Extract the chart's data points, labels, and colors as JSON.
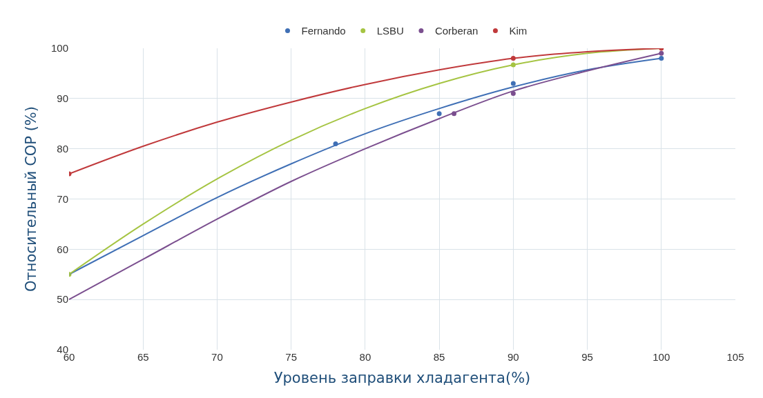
{
  "chart_data": {
    "type": "scatter",
    "xlabel": "Уровень заправки хладагента(%)",
    "ylabel": "Относительный COP (%)",
    "xlim": [
      60,
      105
    ],
    "xticks": [
      60,
      65,
      70,
      75,
      80,
      85,
      90,
      95,
      100,
      105
    ],
    "ylim": [
      40,
      100
    ],
    "yticks": [
      40,
      50,
      60,
      70,
      80,
      90,
      100
    ],
    "grid": true,
    "legend": "top",
    "series": [
      {
        "name": "Fernando",
        "marker": "circle",
        "color": "#3f6fb5",
        "x": [
          78,
          85,
          90,
          100
        ],
        "values": [
          81,
          87,
          93,
          98
        ]
      },
      {
        "name": "LSBU",
        "marker": "circle",
        "color": "#a5c442",
        "x": [
          60,
          90
        ],
        "values": [
          55,
          96.7
        ]
      },
      {
        "name": "Corberan",
        "marker": "circle",
        "color": "#7b4f8f",
        "x": [
          86,
          90,
          100
        ],
        "values": [
          87,
          91,
          99
        ]
      },
      {
        "name": "Kim",
        "marker": "circle",
        "color": "#c0393b",
        "x": [
          60,
          90,
          100
        ],
        "values": [
          75,
          98,
          100
        ]
      },
      {
        "type": "line",
        "color": "#3f6fb5",
        "x": [
          60,
          65,
          70,
          75,
          80,
          85,
          90,
          95,
          100
        ],
        "values": [
          55,
          62.7,
          70.3,
          77,
          83,
          88,
          92.3,
          95.7,
          98
        ]
      },
      {
        "type": "line",
        "color": "#a5c442",
        "x": [
          60,
          65,
          70,
          75,
          80,
          85,
          90,
          95,
          100
        ],
        "values": [
          55,
          65,
          74,
          81.7,
          88,
          93,
          96.7,
          99,
          100
        ]
      },
      {
        "type": "line",
        "color": "#7b4f8f",
        "x": [
          60,
          65,
          70,
          75,
          80,
          85,
          90,
          95,
          100
        ],
        "values": [
          50,
          58,
          66,
          73.5,
          80,
          86,
          91.5,
          95.5,
          99
        ]
      },
      {
        "type": "line",
        "color": "#c0393b",
        "x": [
          60,
          65,
          70,
          75,
          80,
          85,
          90,
          95,
          100
        ],
        "values": [
          75,
          80.5,
          85.3,
          89.3,
          92.8,
          95.7,
          98,
          99.3,
          100
        ]
      }
    ]
  }
}
